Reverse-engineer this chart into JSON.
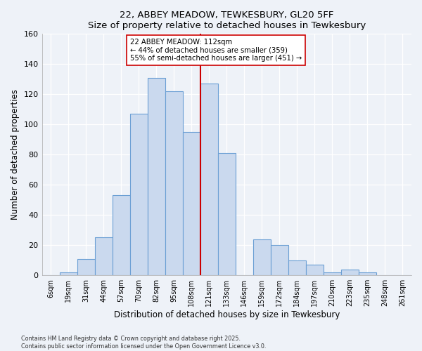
{
  "title": "22, ABBEY MEADOW, TEWKESBURY, GL20 5FF",
  "subtitle": "Size of property relative to detached houses in Tewkesbury",
  "xlabel": "Distribution of detached houses by size in Tewkesbury",
  "ylabel": "Number of detached properties",
  "bar_labels": [
    "6sqm",
    "19sqm",
    "31sqm",
    "44sqm",
    "57sqm",
    "70sqm",
    "82sqm",
    "95sqm",
    "108sqm",
    "121sqm",
    "133sqm",
    "146sqm",
    "159sqm",
    "172sqm",
    "184sqm",
    "197sqm",
    "210sqm",
    "223sqm",
    "235sqm",
    "248sqm",
    "261sqm"
  ],
  "bar_heights": [
    0,
    2,
    11,
    25,
    53,
    107,
    131,
    122,
    95,
    127,
    81,
    0,
    24,
    20,
    10,
    7,
    2,
    4,
    2,
    0,
    0
  ],
  "bar_color": "#cad9ee",
  "bar_edge_color": "#6b9fd4",
  "vline_x_label": "108sqm",
  "vline_color": "#cc0000",
  "annotation_title": "22 ABBEY MEADOW: 112sqm",
  "annotation_line1": "← 44% of detached houses are smaller (359)",
  "annotation_line2": "55% of semi-detached houses are larger (451) →",
  "annotation_box_color": "#ffffff",
  "annotation_box_edge": "#cc0000",
  "ylim": [
    0,
    160
  ],
  "yticks": [
    0,
    20,
    40,
    60,
    80,
    100,
    120,
    140,
    160
  ],
  "background_color": "#eef2f8",
  "grid_color": "#ffffff",
  "footer1": "Contains HM Land Registry data © Crown copyright and database right 2025.",
  "footer2": "Contains public sector information licensed under the Open Government Licence v3.0."
}
